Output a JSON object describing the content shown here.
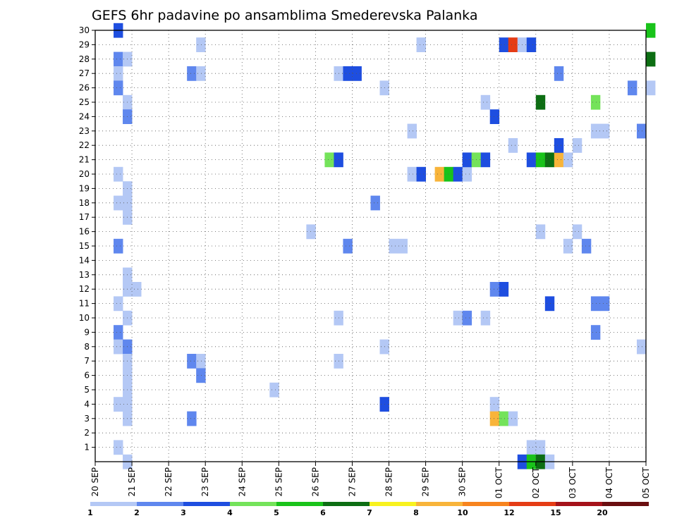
{
  "chart_data": {
    "type": "heatmap",
    "title": "GEFS 6hr padavine po ansamblima Smederevska Palanka",
    "xlabel": "",
    "ylabel": "",
    "x_ticks": [
      "20 SEP",
      "21 SEP",
      "22 SEP",
      "23 SEP",
      "24 SEP",
      "25 SEP",
      "26 SEP",
      "27 SEP",
      "28 SEP",
      "29 SEP",
      "30 SEP",
      "01 OCT",
      "02 OCT",
      "03 OCT",
      "04 OCT",
      "05 OCT"
    ],
    "y_ticks": [
      1,
      2,
      3,
      4,
      5,
      6,
      7,
      8,
      9,
      10,
      11,
      12,
      13,
      14,
      15,
      16,
      17,
      18,
      19,
      20,
      21,
      22,
      23,
      24,
      25,
      26,
      27,
      28,
      29,
      30
    ],
    "xlim": [
      0,
      15
    ],
    "ylim": [
      0,
      30
    ],
    "grid": true,
    "legend": {
      "placement": "bottom",
      "labels": [
        "1",
        "2",
        "3",
        "4",
        "5",
        "6",
        "7",
        "8",
        "10",
        "12",
        "15",
        "20"
      ],
      "colors": [
        "#b4c8f5",
        "#5f87ee",
        "#1e4ee0",
        "#74e35a",
        "#19c31a",
        "#0d6e13",
        "#f8f21e",
        "#f8b43a",
        "#f7841e",
        "#e53c15",
        "#a5121a",
        "#6a0e10"
      ]
    },
    "cells": [
      {
        "d": "20 SEP 12Z",
        "m": 30,
        "v": 3
      },
      {
        "d": "20 SEP 12Z",
        "m": 28,
        "v": 2
      },
      {
        "d": "20 SEP 18Z",
        "m": 28,
        "v": 1
      },
      {
        "d": "20 SEP 12Z",
        "m": 27,
        "v": 1
      },
      {
        "d": "20 SEP 12Z",
        "m": 26,
        "v": 2
      },
      {
        "d": "20 SEP 18Z",
        "m": 25,
        "v": 1
      },
      {
        "d": "20 SEP 18Z",
        "m": 24,
        "v": 2
      },
      {
        "d": "20 SEP 12Z",
        "m": 20,
        "v": 1
      },
      {
        "d": "20 SEP 18Z",
        "m": 19,
        "v": 1
      },
      {
        "d": "20 SEP 12Z",
        "m": 18,
        "v": 1
      },
      {
        "d": "20 SEP 18Z",
        "m": 18,
        "v": 1
      },
      {
        "d": "20 SEP 18Z",
        "m": 17,
        "v": 1
      },
      {
        "d": "20 SEP 12Z",
        "m": 15,
        "v": 2
      },
      {
        "d": "20 SEP 18Z",
        "m": 13,
        "v": 1
      },
      {
        "d": "20 SEP 18Z",
        "m": 12,
        "v": 1
      },
      {
        "d": "21 SEP 00Z",
        "m": 12,
        "v": 1
      },
      {
        "d": "20 SEP 12Z",
        "m": 11,
        "v": 1
      },
      {
        "d": "20 SEP 18Z",
        "m": 10,
        "v": 1
      },
      {
        "d": "20 SEP 12Z",
        "m": 9,
        "v": 2
      },
      {
        "d": "20 SEP 12Z",
        "m": 8,
        "v": 1
      },
      {
        "d": "20 SEP 18Z",
        "m": 8,
        "v": 2
      },
      {
        "d": "20 SEP 18Z",
        "m": 7,
        "v": 1
      },
      {
        "d": "20 SEP 18Z",
        "m": 6,
        "v": 1
      },
      {
        "d": "20 SEP 18Z",
        "m": 5,
        "v": 1
      },
      {
        "d": "20 SEP 12Z",
        "m": 4,
        "v": 1
      },
      {
        "d": "20 SEP 18Z",
        "m": 4,
        "v": 1
      },
      {
        "d": "20 SEP 18Z",
        "m": 3,
        "v": 1
      },
      {
        "d": "20 SEP 12Z",
        "m": 1,
        "v": 1
      },
      {
        "d": "20 SEP 18Z",
        "m": 0,
        "v": 1
      },
      {
        "d": "22 SEP 18Z",
        "m": 29,
        "v": 1
      },
      {
        "d": "22 SEP 12Z",
        "m": 27,
        "v": 2
      },
      {
        "d": "22 SEP 18Z",
        "m": 27,
        "v": 1
      },
      {
        "d": "22 SEP 12Z",
        "m": 7,
        "v": 2
      },
      {
        "d": "22 SEP 18Z",
        "m": 7,
        "v": 1
      },
      {
        "d": "22 SEP 18Z",
        "m": 6,
        "v": 2
      },
      {
        "d": "22 SEP 12Z",
        "m": 3,
        "v": 2
      },
      {
        "d": "24 SEP 18Z",
        "m": 5,
        "v": 1
      },
      {
        "d": "25 SEP 18Z",
        "m": 16,
        "v": 1
      },
      {
        "d": "26 SEP 12Z",
        "m": 27,
        "v": 1
      },
      {
        "d": "26 SEP 18Z",
        "m": 27,
        "v": 3
      },
      {
        "d": "27 SEP 00Z",
        "m": 27,
        "v": 3
      },
      {
        "d": "26 SEP 06Z",
        "m": 21,
        "v": 4
      },
      {
        "d": "26 SEP 12Z",
        "m": 21,
        "v": 3
      },
      {
        "d": "26 SEP 18Z",
        "m": 15,
        "v": 2
      },
      {
        "d": "26 SEP 12Z",
        "m": 10,
        "v": 1
      },
      {
        "d": "26 SEP 12Z",
        "m": 7,
        "v": 1
      },
      {
        "d": "27 SEP 18Z",
        "m": 26,
        "v": 1
      },
      {
        "d": "27 SEP 12Z",
        "m": 18,
        "v": 2
      },
      {
        "d": "28 SEP 00Z",
        "m": 15,
        "v": 1
      },
      {
        "d": "28 SEP 06Z",
        "m": 15,
        "v": 1
      },
      {
        "d": "27 SEP 18Z",
        "m": 8,
        "v": 1
      },
      {
        "d": "27 SEP 18Z",
        "m": 4,
        "v": 3
      },
      {
        "d": "28 SEP 18Z",
        "m": 29,
        "v": 1
      },
      {
        "d": "28 SEP 12Z",
        "m": 23,
        "v": 1
      },
      {
        "d": "28 SEP 12Z",
        "m": 20,
        "v": 1
      },
      {
        "d": "28 SEP 18Z",
        "m": 20,
        "v": 3
      },
      {
        "d": "29 SEP 06Z",
        "m": 20,
        "v": 8
      },
      {
        "d": "29 SEP 12Z",
        "m": 20,
        "v": 5
      },
      {
        "d": "29 SEP 18Z",
        "m": 20,
        "v": 3
      },
      {
        "d": "30 SEP 00Z",
        "m": 20,
        "v": 1
      },
      {
        "d": "29 SEP 18Z",
        "m": 10,
        "v": 1
      },
      {
        "d": "30 SEP 00Z",
        "m": 10,
        "v": 2
      },
      {
        "d": "30 SEP 00Z",
        "m": 21,
        "v": 3
      },
      {
        "d": "30 SEP 06Z",
        "m": 21,
        "v": 4
      },
      {
        "d": "30 SEP 12Z",
        "m": 21,
        "v": 3
      },
      {
        "d": "30 SEP 12Z",
        "m": 25,
        "v": 1
      },
      {
        "d": "30 SEP 18Z",
        "m": 24,
        "v": 3
      },
      {
        "d": "30 SEP 12Z",
        "m": 10,
        "v": 1
      },
      {
        "d": "30 SEP 18Z",
        "m": 12,
        "v": 2
      },
      {
        "d": "01 OCT 00Z",
        "m": 12,
        "v": 3
      },
      {
        "d": "30 SEP 18Z",
        "m": 4,
        "v": 1
      },
      {
        "d": "30 SEP 18Z",
        "m": 3,
        "v": 8
      },
      {
        "d": "01 OCT 00Z",
        "m": 3,
        "v": 4
      },
      {
        "d": "01 OCT 06Z",
        "m": 3,
        "v": 1
      },
      {
        "d": "01 OCT 00Z",
        "m": 29,
        "v": 3
      },
      {
        "d": "01 OCT 06Z",
        "m": 29,
        "v": 14
      },
      {
        "d": "01 OCT 12Z",
        "m": 29,
        "v": 1
      },
      {
        "d": "01 OCT 18Z",
        "m": 29,
        "v": 3
      },
      {
        "d": "01 OCT 06Z",
        "m": 22,
        "v": 1
      },
      {
        "d": "01 OCT 18Z",
        "m": 21,
        "v": 3
      },
      {
        "d": "02 OCT 00Z",
        "m": 21,
        "v": 5
      },
      {
        "d": "02 OCT 06Z",
        "m": 21,
        "v": 6
      },
      {
        "d": "02 OCT 12Z",
        "m": 21,
        "v": 8
      },
      {
        "d": "02 OCT 18Z",
        "m": 21,
        "v": 1
      },
      {
        "d": "02 OCT 00Z",
        "m": 25,
        "v": 6
      },
      {
        "d": "02 OCT 12Z",
        "m": 22,
        "v": 3
      },
      {
        "d": "02 OCT 00Z",
        "m": 16,
        "v": 1
      },
      {
        "d": "02 OCT 06Z",
        "m": 11,
        "v": 3
      },
      {
        "d": "01 OCT 18Z",
        "m": 1,
        "v": 1
      },
      {
        "d": "02 OCT 00Z",
        "m": 1,
        "v": 1
      },
      {
        "d": "01 OCT 12Z",
        "m": 0,
        "v": 3
      },
      {
        "d": "01 OCT 18Z",
        "m": 0,
        "v": 5
      },
      {
        "d": "02 OCT 00Z",
        "m": 0,
        "v": 6
      },
      {
        "d": "02 OCT 06Z",
        "m": 0,
        "v": 1
      },
      {
        "d": "02 OCT 12Z",
        "m": 27,
        "v": 2
      },
      {
        "d": "03 OCT 00Z",
        "m": 22,
        "v": 1
      },
      {
        "d": "02 OCT 18Z",
        "m": 15,
        "v": 1
      },
      {
        "d": "03 OCT 00Z",
        "m": 16,
        "v": 1
      },
      {
        "d": "03 OCT 06Z",
        "m": 15,
        "v": 2
      },
      {
        "d": "03 OCT 12Z",
        "m": 25,
        "v": 4
      },
      {
        "d": "03 OCT 12Z",
        "m": 23,
        "v": 1
      },
      {
        "d": "03 OCT 18Z",
        "m": 23,
        "v": 1
      },
      {
        "d": "03 OCT 12Z",
        "m": 11,
        "v": 2
      },
      {
        "d": "03 OCT 18Z",
        "m": 11,
        "v": 2
      },
      {
        "d": "03 OCT 12Z",
        "m": 9,
        "v": 2
      },
      {
        "d": "04 OCT 12Z",
        "m": 26,
        "v": 2
      },
      {
        "d": "04 OCT 18Z",
        "m": 23,
        "v": 2
      },
      {
        "d": "04 OCT 18Z",
        "m": 8,
        "v": 1
      },
      {
        "d": "05 OCT 00Z",
        "m": 30,
        "v": 5
      },
      {
        "d": "05 OCT 00Z",
        "m": 28,
        "v": 6
      },
      {
        "d": "05 OCT 00Z",
        "m": 26,
        "v": 1
      }
    ]
  }
}
